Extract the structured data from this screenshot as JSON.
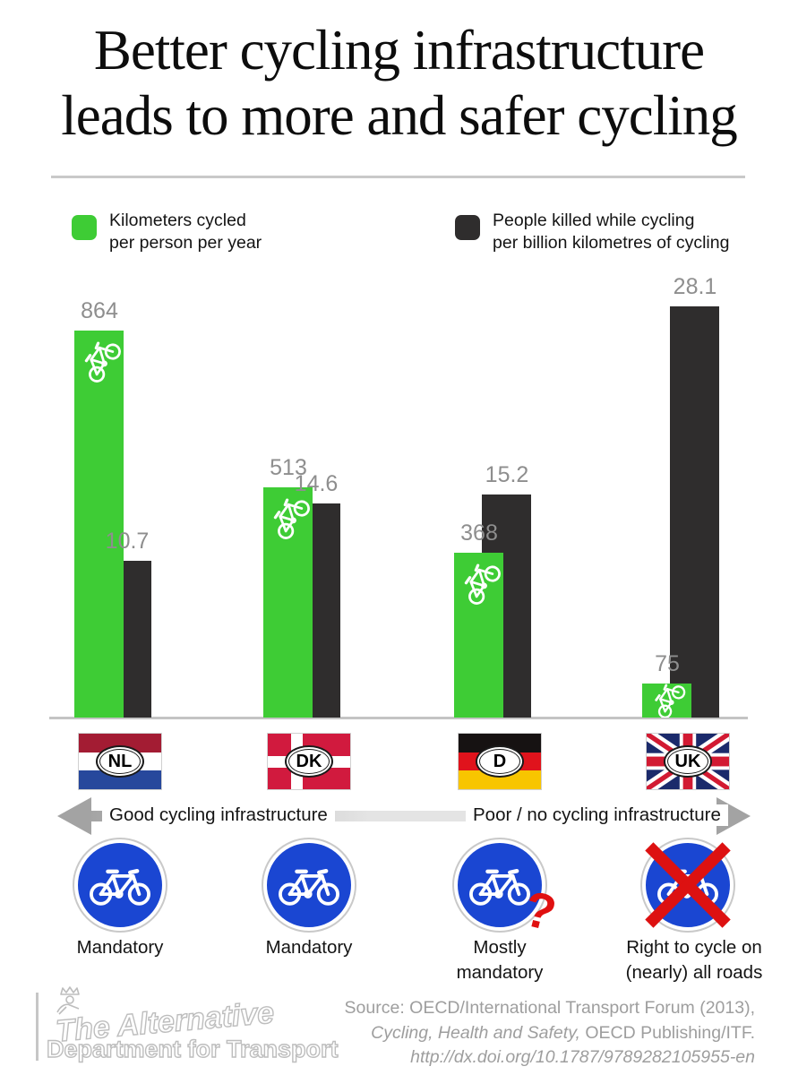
{
  "title": {
    "line1": "Better cycling infrastructure",
    "line2": "leads to more and safer cycling"
  },
  "legend": {
    "items": [
      {
        "label_line1": "Kilometers cycled",
        "label_line2": "per person per year",
        "color": "#3ecc35"
      },
      {
        "label_line1": "People killed while cycling",
        "label_line2": "per billion kilometres of cycling",
        "color": "#2f2d2d"
      }
    ]
  },
  "chart_data": {
    "type": "bar",
    "categories": [
      "NL",
      "DK",
      "D",
      "UK"
    ],
    "series": [
      {
        "name": "Kilometers cycled per person per year",
        "values": [
          864,
          513,
          368,
          75
        ],
        "color": "#3ecc35"
      },
      {
        "name": "People killed while cycling per billion kilometres of cycling",
        "values": [
          10.7,
          14.6,
          15.2,
          28.1
        ],
        "color": "#2f2d2d"
      }
    ],
    "value_labels": {
      "km": [
        "864",
        "513",
        "368",
        "75"
      ],
      "killed": [
        "10.7",
        "14.6",
        "15.2",
        "28.1"
      ]
    },
    "ylim_km": [
      0,
      900
    ],
    "ylim_killed": [
      0,
      30
    ],
    "grid": false,
    "legend_position": "top",
    "value_label_color": "#8e8e8e"
  },
  "flags": [
    {
      "code": "NL"
    },
    {
      "code": "DK"
    },
    {
      "code": "D"
    },
    {
      "code": "UK"
    }
  ],
  "axis": {
    "left_label": "Good cycling infrastructure",
    "right_label": "Poor / no cycling infrastructure"
  },
  "signs": [
    {
      "label": "Mandatory"
    },
    {
      "label": "Mandatory"
    },
    {
      "label": "Mostly\nmandatory",
      "question_mark": "?"
    },
    {
      "label": "Right to cycle on\n(nearly) all roads",
      "crossed": true
    }
  ],
  "footer": {
    "logo_line1": "The Alternative",
    "logo_line2": "Department for Transport",
    "source_line1": "Source: OECD/International Transport Forum (2013),",
    "source_line2_italic": "Cycling, Health and Safety,",
    "source_line2_rest": " OECD Publishing/ITF.",
    "source_line3": "http://dx.doi.org/10.1787/9789282105955-en"
  },
  "colors": {
    "green": "#3ecc35",
    "dark": "#2f2d2d",
    "sign_blue": "#1a46d2",
    "cross_red": "#dd1111",
    "value_label": "#8e8e8e"
  }
}
